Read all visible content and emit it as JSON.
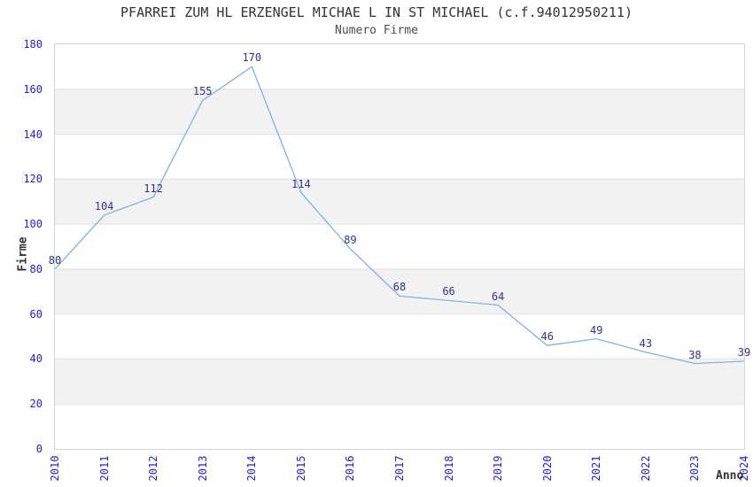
{
  "chart_data": {
    "type": "line",
    "title": "PFARREI ZUM HL ERZENGEL MICHAE L IN ST MICHAEL (c.f.94012950211)",
    "subtitle": "Numero Firme",
    "xlabel": "Anno",
    "ylabel": "Firme",
    "x": [
      2010,
      2011,
      2012,
      2013,
      2014,
      2015,
      2016,
      2017,
      2018,
      2019,
      2020,
      2021,
      2022,
      2023,
      2024
    ],
    "series": [
      {
        "name": "Numero Firme",
        "values": [
          80,
          104,
          112,
          155,
          170,
          114,
          89,
          68,
          66,
          64,
          46,
          49,
          43,
          38,
          39
        ]
      }
    ],
    "ylim": [
      0,
      180
    ],
    "yticks": [
      0,
      20,
      40,
      60,
      80,
      100,
      120,
      140,
      160,
      180
    ],
    "ytick_step": 20,
    "grid": "horizontal-lines-with-alternating-bands",
    "legend": "none",
    "data_labels_visible": true,
    "colors": {
      "line": "#7fb2e6",
      "tick_label": "#2323cc",
      "data_label": "#333388",
      "band": "#f2f2f2",
      "gridline": "#e0e0e0",
      "plot_border": "#d4d4d4",
      "title": "#333333",
      "subtitle": "#4d4d4d",
      "axis_title": "#333333",
      "background": "#ffffff"
    }
  }
}
